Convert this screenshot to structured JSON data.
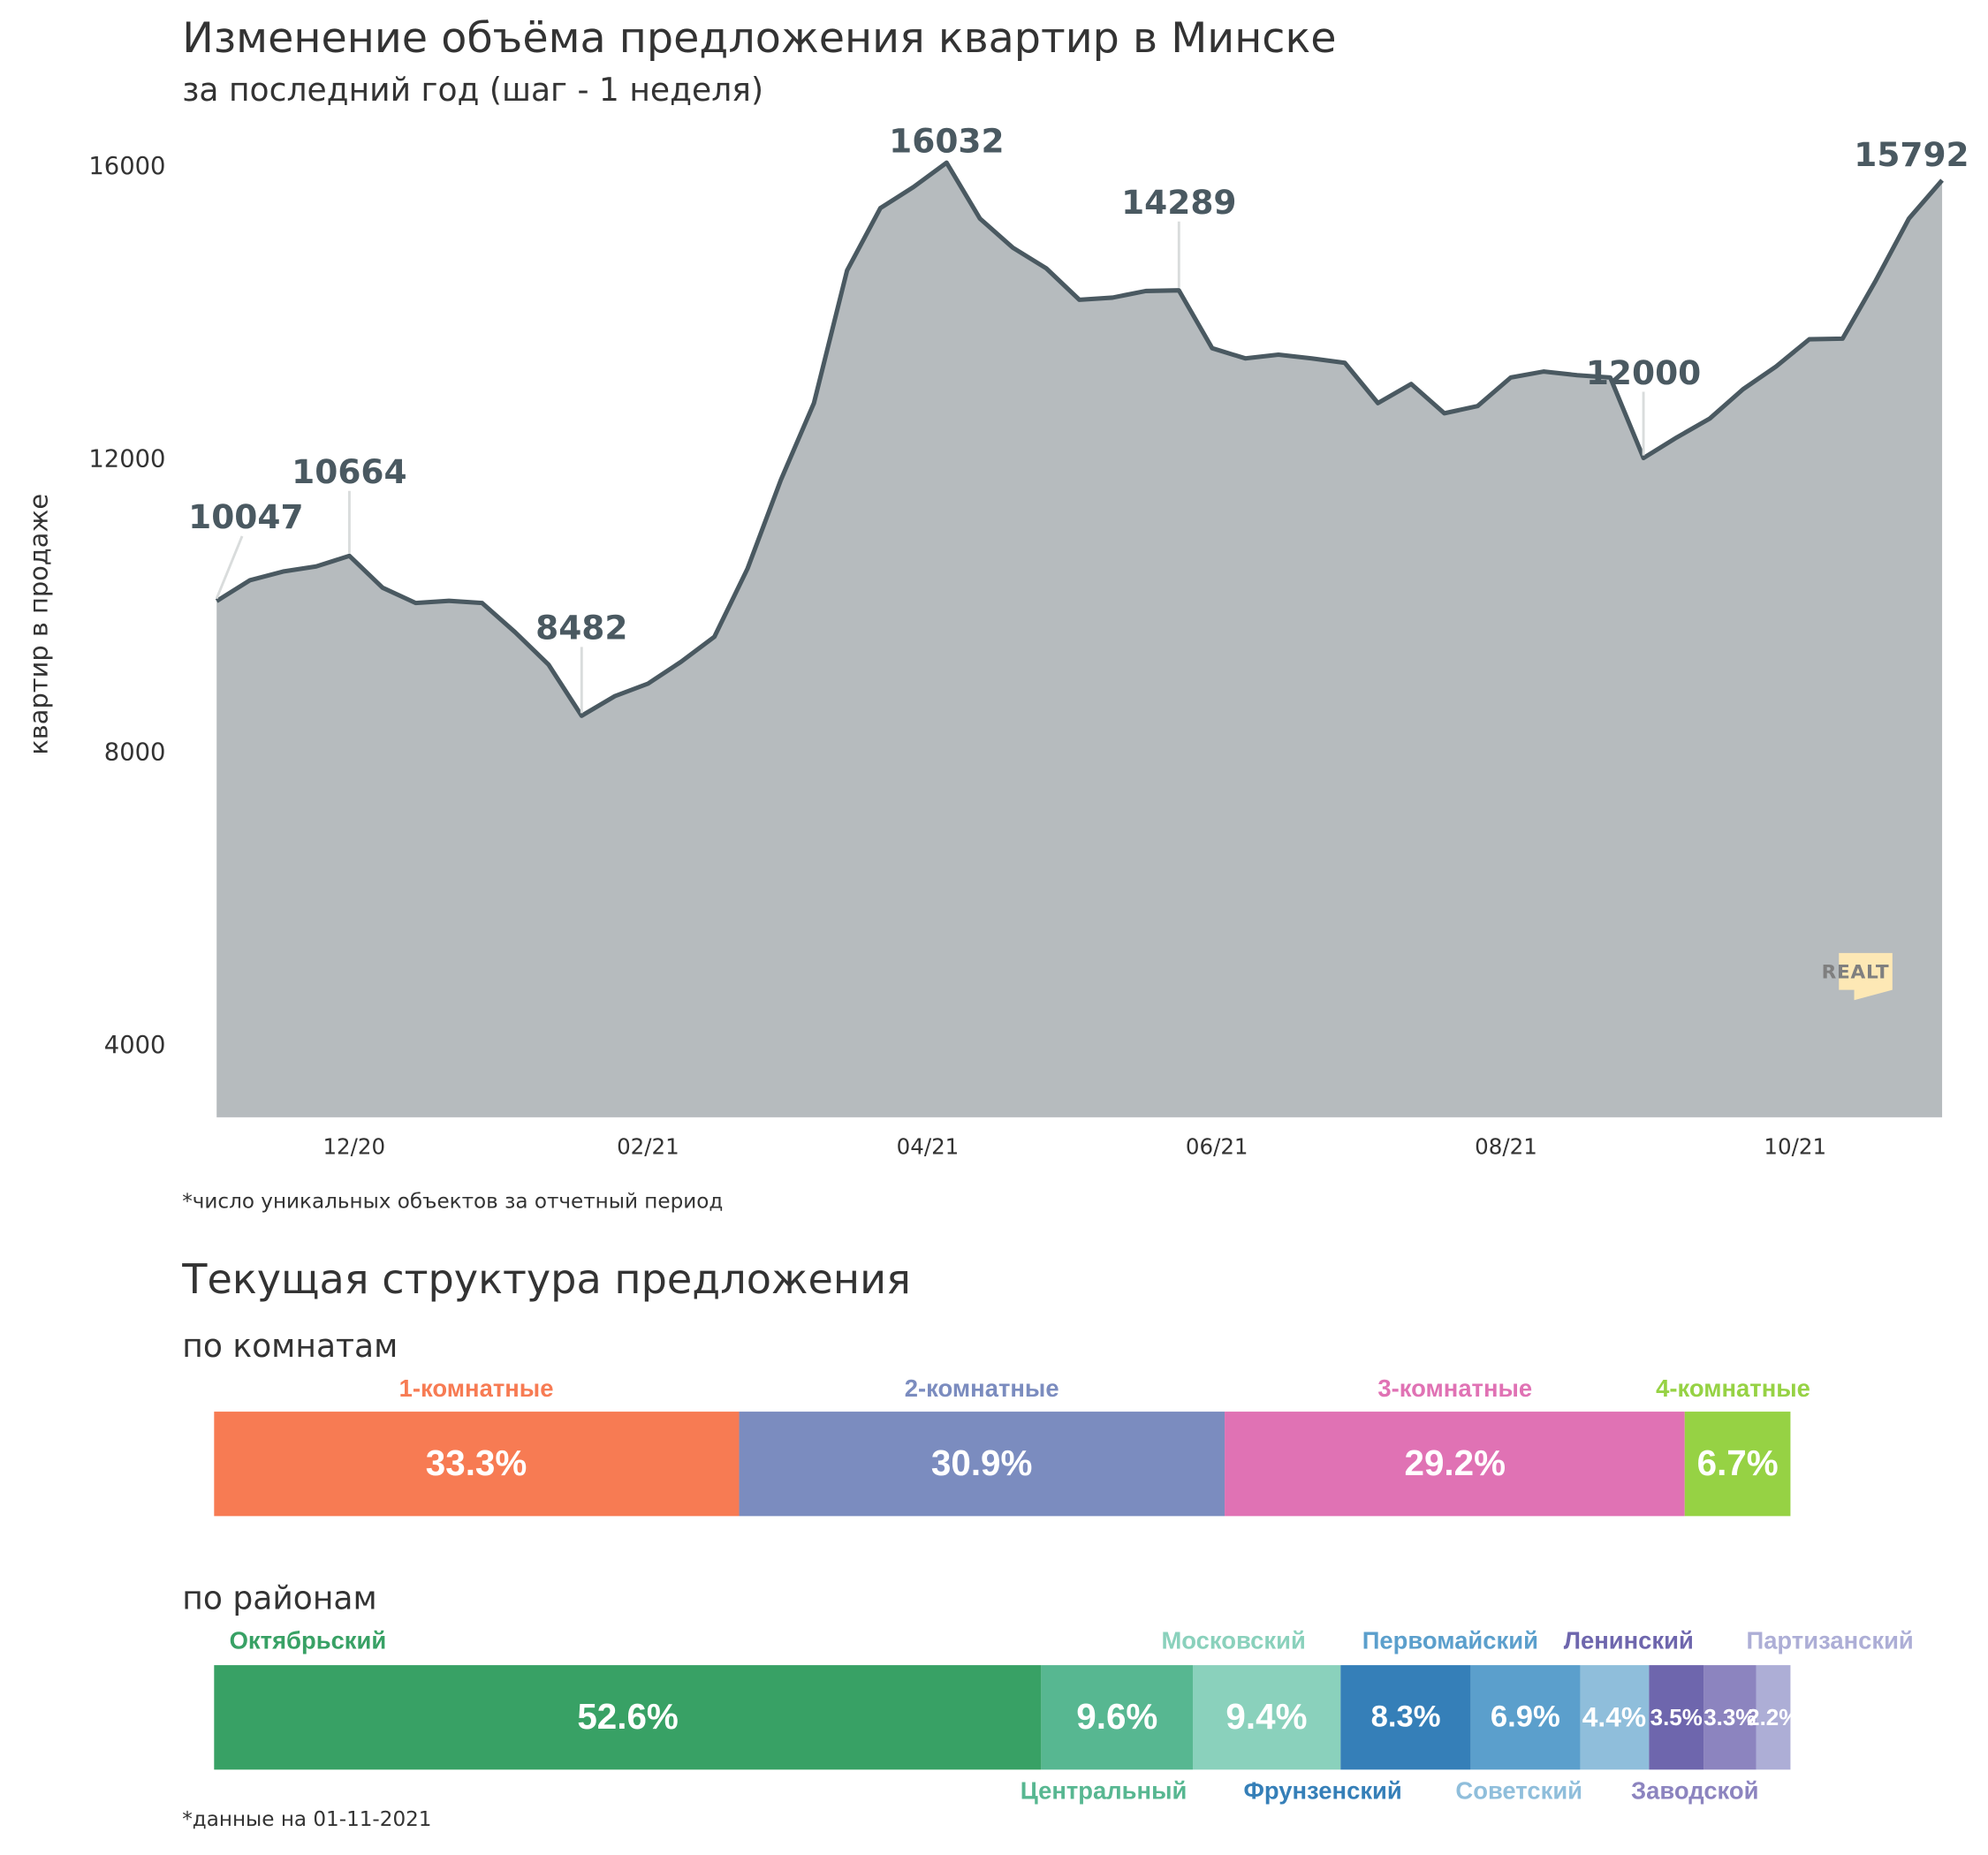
{
  "header": {
    "title": "Изменение объёма предложения квартир в Минске",
    "subtitle": "за последний год (шаг - 1 неделя)"
  },
  "chart_data": {
    "type": "area",
    "title": "Изменение объёма предложения квартир в Минске",
    "subtitle": "за последний год (шаг - 1 неделя)",
    "ylabel": "квартир в продаже",
    "xlabel": "",
    "ylim": [
      3000,
      16100
    ],
    "y_ticks": [
      4000,
      8000,
      12000,
      16000
    ],
    "x_ticks": [
      {
        "date": "2020-12-01",
        "label": "12/20"
      },
      {
        "date": "2021-02-01",
        "label": "02/21"
      },
      {
        "date": "2021-04-01",
        "label": "04/21"
      },
      {
        "date": "2021-06-01",
        "label": "06/21"
      },
      {
        "date": "2021-08-01",
        "label": "08/21"
      },
      {
        "date": "2021-10-01",
        "label": "10/21"
      }
    ],
    "grid": false,
    "fill_color": "#b6bbbe",
    "line_color": "#4a5961",
    "x": [
      "2020-11-02",
      "2020-11-09",
      "2020-11-16",
      "2020-11-23",
      "2020-11-30",
      "2020-12-07",
      "2020-12-14",
      "2020-12-21",
      "2020-12-28",
      "2021-01-04",
      "2021-01-11",
      "2021-01-18",
      "2021-01-25",
      "2021-02-01",
      "2021-02-08",
      "2021-02-15",
      "2021-02-22",
      "2021-03-01",
      "2021-03-08",
      "2021-03-15",
      "2021-03-22",
      "2021-03-29",
      "2021-04-05",
      "2021-04-12",
      "2021-04-19",
      "2021-04-26",
      "2021-05-03",
      "2021-05-10",
      "2021-05-17",
      "2021-05-24",
      "2021-05-31",
      "2021-06-07",
      "2021-06-14",
      "2021-06-21",
      "2021-06-28",
      "2021-07-05",
      "2021-07-12",
      "2021-07-19",
      "2021-07-26",
      "2021-08-02",
      "2021-08-09",
      "2021-08-16",
      "2021-08-23",
      "2021-08-30",
      "2021-09-06",
      "2021-09-13",
      "2021-09-20",
      "2021-09-27",
      "2021-10-04",
      "2021-10-11",
      "2021-10-18",
      "2021-10-25",
      "2021-11-01"
    ],
    "values": [
      10047,
      10330,
      10450,
      10520,
      10664,
      10230,
      10020,
      10050,
      10020,
      9620,
      9180,
      8482,
      8750,
      8920,
      9220,
      9560,
      10490,
      11700,
      12750,
      14560,
      15410,
      15700,
      16032,
      15270,
      14870,
      14590,
      14160,
      14190,
      14280,
      14289,
      13500,
      13360,
      13410,
      13360,
      13300,
      12750,
      13010,
      12610,
      12710,
      13100,
      13180,
      13130,
      13100,
      12000,
      12280,
      12540,
      12940,
      13250,
      13620,
      13630,
      14420,
      15270,
      15792
    ],
    "annotations": [
      {
        "index": 0,
        "text": "10047"
      },
      {
        "index": 4,
        "text": "10664"
      },
      {
        "index": 11,
        "text": "8482"
      },
      {
        "index": 22,
        "text": "16032"
      },
      {
        "index": 29,
        "text": "14289"
      },
      {
        "index": 43,
        "text": "12000"
      },
      {
        "index": 52,
        "text": "15792"
      }
    ]
  },
  "footnote_chart": "*число уникальных объектов за отчетный период",
  "logo": {
    "text": "REALT",
    "bg_color": "#fde8b5",
    "text_color": "#7f7f7f"
  },
  "structure": {
    "title": "Текущая структура предложения",
    "rooms": {
      "title": "по комнатам",
      "segments": [
        {
          "label": "1-комнатные",
          "value": 33.3,
          "value_label": "33.3%",
          "color": "#f77b53"
        },
        {
          "label": "2-комнатные",
          "value": 30.9,
          "value_label": "30.9%",
          "color": "#7b8cbf"
        },
        {
          "label": "3-комнатные",
          "value": 29.2,
          "value_label": "29.2%",
          "color": "#e072b4"
        },
        {
          "label": "4-комнатные",
          "value": 6.7,
          "value_label": "6.7%",
          "color": "#96d244"
        }
      ]
    },
    "districts": {
      "title": "по районам",
      "segments": [
        {
          "label": "Октябрьский",
          "value": 52.6,
          "value_label": "52.6%",
          "color": "#38a165"
        },
        {
          "label": "Центральный",
          "value": 9.6,
          "value_label": "9.6%",
          "color": "#57b791"
        },
        {
          "label": "Московский",
          "value": 9.4,
          "value_label": "9.4%",
          "color": "#8ad1bc"
        },
        {
          "label": "Фрунзенский",
          "value": 8.3,
          "value_label": "8.3%",
          "color": "#357fb8"
        },
        {
          "label": "Первомайский",
          "value": 6.9,
          "value_label": "6.9%",
          "color": "#5b9fcc"
        },
        {
          "label": "Советский",
          "value": 4.4,
          "value_label": "4.4%",
          "color": "#8fbedb"
        },
        {
          "label": "Ленинский",
          "value": 3.5,
          "value_label": "3.5%",
          "color": "#6e66ad"
        },
        {
          "label": "Заводской",
          "value": 3.3,
          "value_label": "3.3%",
          "color": "#8c84bf"
        },
        {
          "label": "Партизанский",
          "value": 2.2,
          "value_label": "2.2%",
          "color": "#adaed6"
        }
      ]
    },
    "footnote": "*данные на 01-11-2021"
  }
}
